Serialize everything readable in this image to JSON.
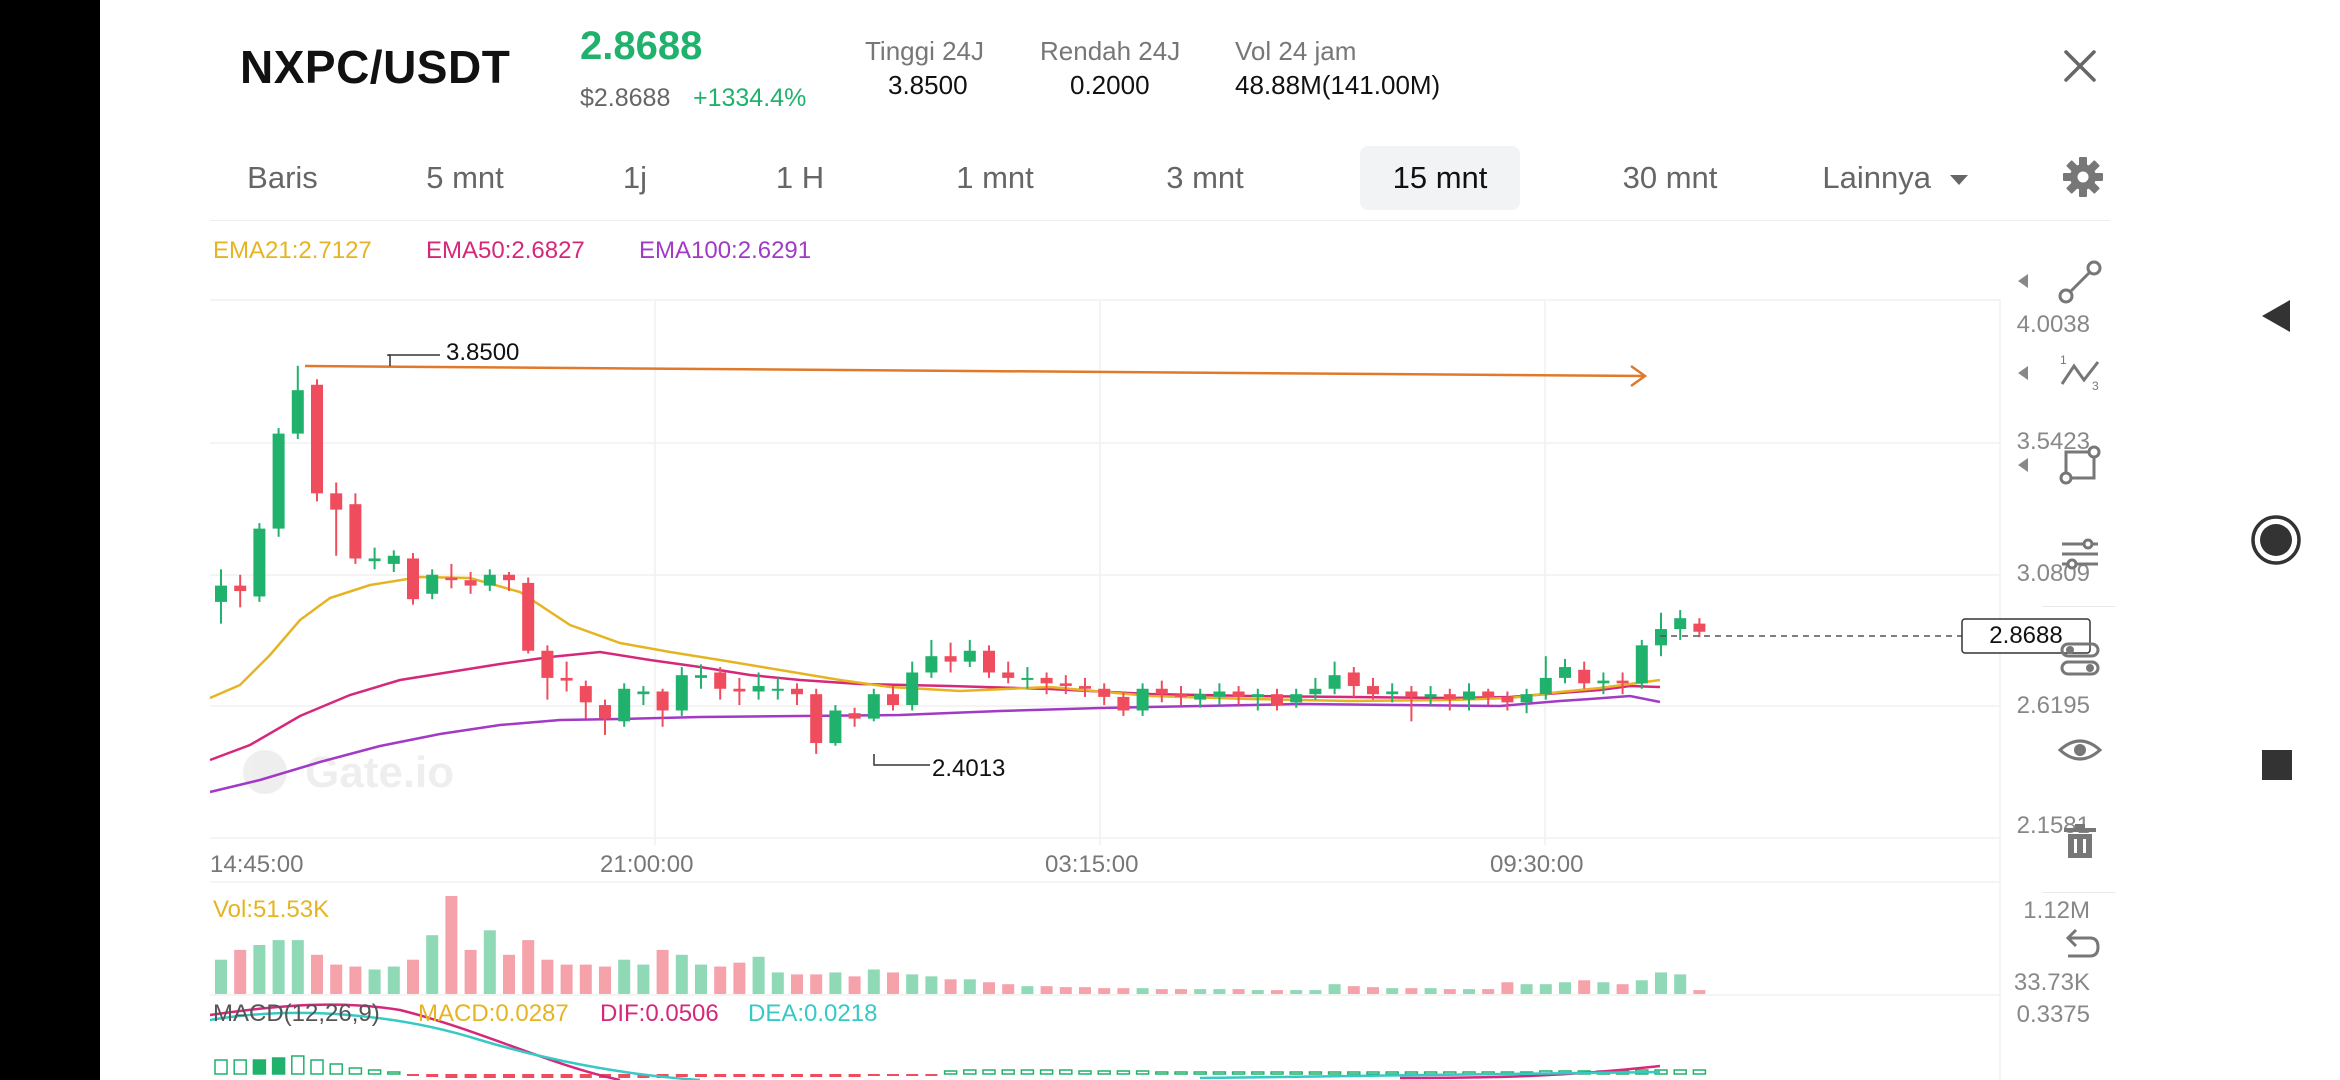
{
  "header": {
    "pair": "NXPC/USDT",
    "price": "2.8688",
    "price_usd": "$2.8688",
    "change": "+1334.4%",
    "stats": [
      {
        "label": "Tinggi 24J",
        "value": "3.8500"
      },
      {
        "label": "Rendah 24J",
        "value": "0.2000"
      },
      {
        "label": "Vol 24 jam",
        "value": "48.88M(141.00M)"
      }
    ]
  },
  "tabs": [
    {
      "label": "Baris"
    },
    {
      "label": "5 mnt"
    },
    {
      "label": "1j"
    },
    {
      "label": "1 H"
    },
    {
      "label": "1 mnt"
    },
    {
      "label": "3 mnt"
    },
    {
      "label": "15 mnt"
    },
    {
      "label": "30 mnt"
    },
    {
      "label": "Lainnya"
    }
  ],
  "active_tab": "15 mnt",
  "ema": {
    "ema21": "EMA21:2.7127",
    "ema50": "EMA50:2.6827",
    "ema100": "EMA100:2.6291"
  },
  "chart": {
    "y_labels": [
      "4.0038",
      "3.5423",
      "3.0809",
      "2.6195",
      "2.1581"
    ],
    "x_labels": [
      "14:45:00",
      "21:00:00",
      "03:15:00",
      "09:30:00"
    ],
    "high_label": "3.8500",
    "low_label": "2.4013",
    "last_price": "2.8688",
    "watermark": "Gate.io"
  },
  "volume": {
    "label": "Vol:51.53K",
    "max": "1.12M",
    "min": "33.73K"
  },
  "macd": {
    "name": "MACD(12,26,9)",
    "macd": "MACD:0.0287",
    "dif": "DIF:0.0506",
    "dea": "DEA:0.0218",
    "top": "0.3375"
  },
  "colors": {
    "up": "#20b26c",
    "down": "#ef4d5d",
    "ema21": "#e6b422",
    "ema50": "#d6287a",
    "ema100": "#a23ac6",
    "trendline": "#e07a2a",
    "dea": "#36c9c6"
  },
  "icons": {
    "close": "close-icon",
    "settings": "gear-icon",
    "tools": [
      "trendline-icon",
      "fibonacci-icon",
      "rectangle-icon",
      "indicator-settings-icon",
      "indicator-toggle-icon",
      "eye-icon",
      "trash-icon",
      "undo-icon"
    ],
    "system": [
      "back-icon",
      "home-icon",
      "recents-icon"
    ]
  },
  "chart_data": {
    "type": "candlestick",
    "interval": "15 mnt",
    "y_ticks": [
      4.0038,
      3.5423,
      3.0809,
      2.6195,
      2.1581
    ],
    "x_ticks": [
      "14:45:00",
      "21:00:00",
      "03:15:00",
      "09:30:00"
    ],
    "high": 3.85,
    "low": 2.4013,
    "last": 2.8688,
    "ema": {
      "EMA21": 2.7127,
      "EMA50": 2.6827,
      "EMA100": 2.6291
    },
    "macd": {
      "MACD": 0.0287,
      "DIF": 0.0506,
      "DEA": 0.0218
    },
    "volume_last": "51.53K",
    "volume_axis": [
      "1.12M",
      "33.73K"
    ]
  }
}
